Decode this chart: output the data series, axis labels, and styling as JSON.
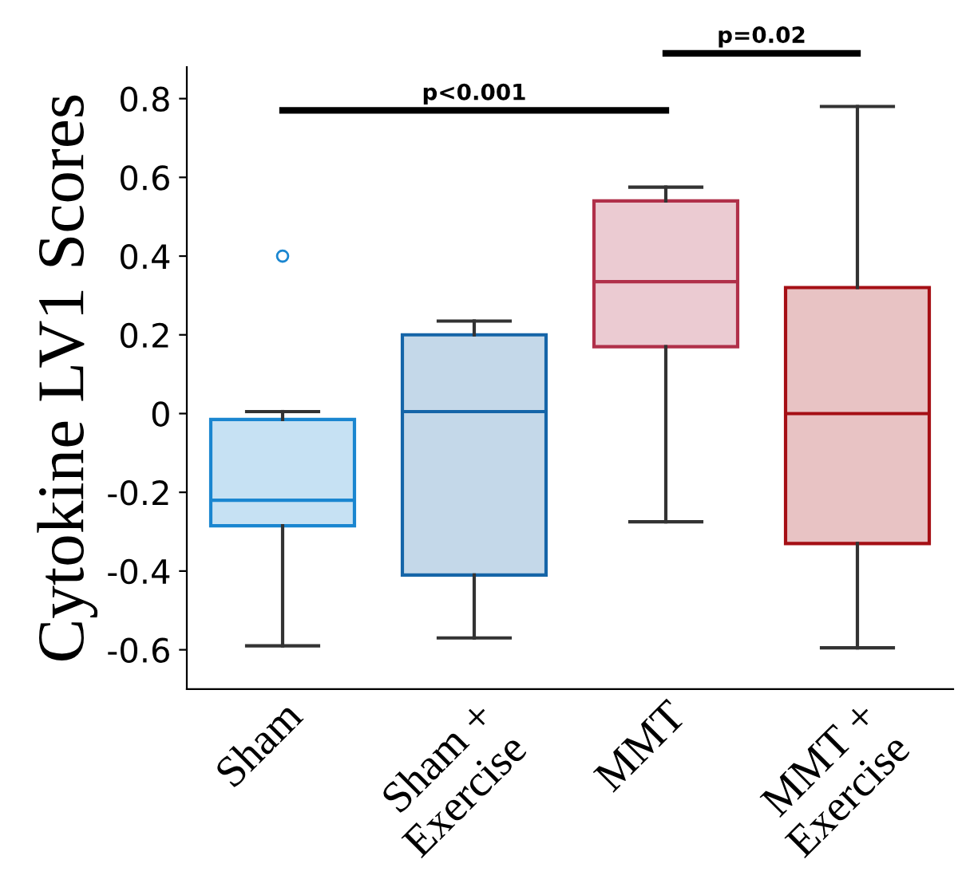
{
  "chart_data": {
    "type": "box",
    "ylabel": "Cytokine LV1 Scores",
    "categories": [
      "Sham",
      "Sham +\nExercise",
      "MMT",
      "MMT +\nExercise"
    ],
    "boxes": [
      {
        "low": -0.59,
        "q1": -0.285,
        "median": -0.22,
        "q3": -0.015,
        "high": 0.005,
        "outliers": [
          0.4
        ]
      },
      {
        "low": -0.57,
        "q1": -0.41,
        "median": 0.005,
        "q3": 0.2,
        "high": 0.235
      },
      {
        "low": -0.275,
        "q1": 0.17,
        "median": 0.335,
        "q3": 0.54,
        "high": 0.575
      },
      {
        "low": -0.595,
        "q1": -0.33,
        "median": 0.0,
        "q3": 0.32,
        "high": 0.78
      }
    ],
    "colors": [
      "#1a86d0",
      "#1565a8",
      "#b0304a",
      "#a50f15"
    ],
    "ylim": [
      -0.7,
      0.88
    ],
    "yticks": [
      -0.6,
      -0.4,
      -0.2,
      0,
      0.2,
      0.4,
      0.6,
      0.8
    ],
    "grid": false,
    "annotations": [
      "p<0.001",
      "p=0.02"
    ]
  }
}
